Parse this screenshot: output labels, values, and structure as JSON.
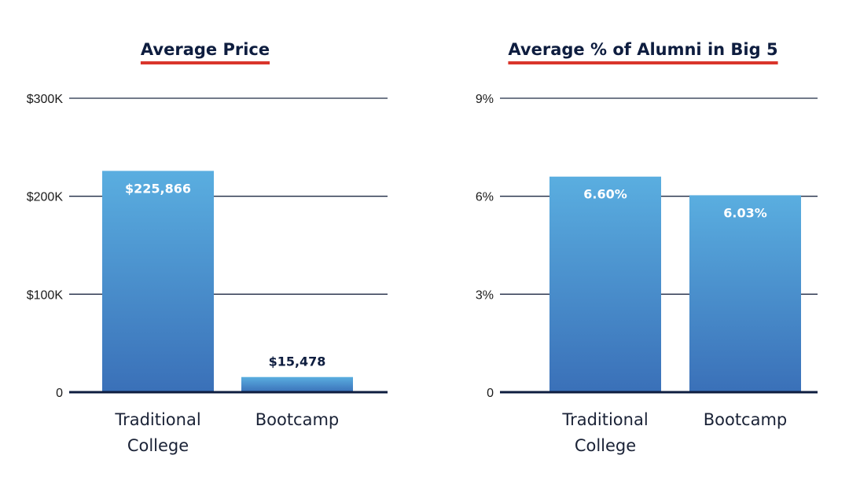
{
  "chart_data": [
    {
      "type": "bar",
      "title": "Average Price",
      "categories": [
        "Traditional College",
        "Bootcamp"
      ],
      "category_lines": [
        [
          "Traditional",
          "College"
        ],
        [
          "Bootcamp"
        ]
      ],
      "values": [
        225866,
        15478
      ],
      "data_labels": [
        "$225,866",
        "$15,478"
      ],
      "ylim": [
        0,
        300000
      ],
      "yticks": [
        0,
        100000,
        200000,
        300000
      ],
      "ytick_labels": [
        "0",
        "$100K",
        "$200K",
        "$300K"
      ],
      "grid": true,
      "xlabel": "",
      "ylabel": ""
    },
    {
      "type": "bar",
      "title": "Average % of Alumni in Big 5",
      "categories": [
        "Traditional College",
        "Bootcamp"
      ],
      "category_lines": [
        [
          "Traditional",
          "College"
        ],
        [
          "Bootcamp"
        ]
      ],
      "values": [
        6.6,
        6.03
      ],
      "data_labels": [
        "6.60%",
        "6.03%"
      ],
      "ylim": [
        0,
        9
      ],
      "yticks": [
        0,
        3,
        6,
        9
      ],
      "ytick_labels": [
        "0",
        "3%",
        "6%",
        "9%"
      ],
      "grid": true,
      "xlabel": "",
      "ylabel": ""
    }
  ],
  "colors": {
    "bar_top": "#5aaee0",
    "bar_bottom": "#3a70b8",
    "title_underline": "#d9352b",
    "axis": "#0e1d3f",
    "grid": "#1f2a44"
  }
}
